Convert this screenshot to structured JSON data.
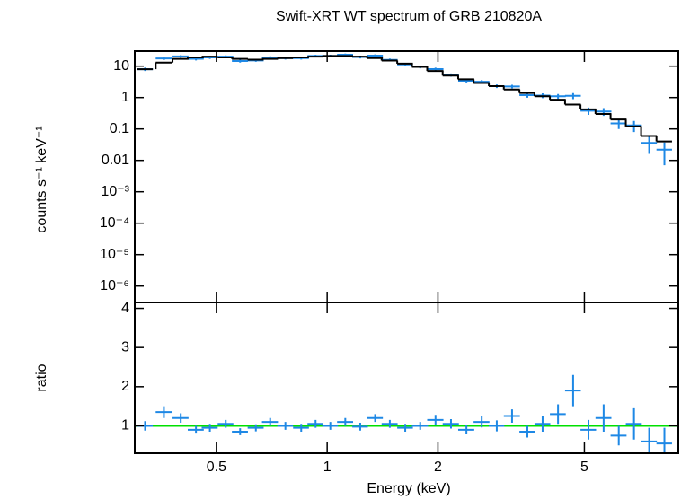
{
  "chart_data": [
    {
      "type": "scatter",
      "title": "Swift-XRT WT spectrum of GRB 210820A",
      "y_label": "counts s⁻¹ keV⁻¹",
      "log_x": true,
      "log_y": true,
      "xlim": [
        0.3,
        9
      ],
      "xticks": [
        0.5,
        1,
        2,
        5
      ],
      "ylim": [
        3e-07,
        30
      ],
      "yticks": [
        10,
        1,
        0.1,
        0.01,
        {
          "value": 0.001,
          "label": "10⁻³"
        },
        {
          "value": 0.0001,
          "label": "10⁻⁴"
        },
        {
          "value": 1e-05,
          "label": "10⁻⁵"
        },
        {
          "value": 1e-06,
          "label": "10⁻⁶"
        }
      ],
      "x": [
        0.32,
        0.36,
        0.4,
        0.44,
        0.48,
        0.53,
        0.58,
        0.64,
        0.7,
        0.77,
        0.85,
        0.93,
        1.02,
        1.12,
        1.23,
        1.35,
        1.48,
        1.63,
        1.79,
        1.97,
        2.17,
        2.39,
        2.63,
        2.89,
        3.18,
        3.5,
        3.85,
        4.24,
        4.66,
        5.13,
        5.64,
        6.2,
        6.82,
        7.5,
        8.25
      ],
      "xerr": [
        0.016,
        0.018,
        0.02,
        0.022,
        0.024,
        0.026,
        0.029,
        0.032,
        0.035,
        0.038,
        0.042,
        0.046,
        0.05,
        0.056,
        0.06,
        0.067,
        0.074,
        0.08,
        0.09,
        0.1,
        0.11,
        0.12,
        0.13,
        0.14,
        0.16,
        0.17,
        0.19,
        0.21,
        0.23,
        0.25,
        0.28,
        0.31,
        0.34,
        0.37,
        0.4
      ],
      "series": [
        {
          "style": "points",
          "color": "#1e88e5",
          "values": [
            8,
            17.6,
            20.4,
            17.1,
            19,
            20,
            14.5,
            15.2,
            18.7,
            18,
            18,
            21,
            21,
            23.1,
            19.6,
            21.6,
            15.8,
            11.4,
            9.5,
            8.05,
            5.25,
            3.42,
            3.19,
            2.3,
            2.25,
            1.19,
            1.16,
            1.1,
            1.14,
            0.38,
            0.36,
            0.15,
            0.13,
            0.036,
            0.022
          ],
          "errors": [
            1,
            2,
            2,
            2,
            2,
            2,
            1.5,
            1.5,
            1.8,
            1.8,
            1.8,
            2,
            2,
            2,
            2,
            2,
            1.6,
            1.2,
            1,
            0.9,
            0.6,
            0.4,
            0.4,
            0.3,
            0.3,
            0.2,
            0.2,
            0.2,
            0.25,
            0.1,
            0.1,
            0.05,
            0.05,
            0.02,
            0.015
          ]
        },
        {
          "style": "step",
          "color": "#000000",
          "values": [
            8,
            13,
            17,
            19,
            20,
            19,
            17,
            16,
            17,
            18,
            19,
            20,
            21,
            21,
            20,
            18,
            15,
            12,
            9.5,
            7,
            5,
            3.8,
            2.9,
            2.3,
            1.8,
            1.4,
            1.1,
            0.85,
            0.6,
            0.42,
            0.3,
            0.2,
            0.12,
            0.06,
            0.04
          ]
        }
      ]
    },
    {
      "type": "scatter",
      "y_label": "ratio",
      "x_label": "Energy (keV)",
      "log_x": true,
      "log_y": false,
      "xlim": [
        0.3,
        9
      ],
      "xticks": [
        0.5,
        1,
        2,
        5
      ],
      "ylim": [
        0.3,
        4.15
      ],
      "yticks": [
        1,
        2,
        3,
        4
      ],
      "reference_line": 1,
      "reference_color": "#00e000",
      "x": [
        0.32,
        0.36,
        0.4,
        0.44,
        0.48,
        0.53,
        0.58,
        0.64,
        0.7,
        0.77,
        0.85,
        0.93,
        1.02,
        1.12,
        1.23,
        1.35,
        1.48,
        1.63,
        1.79,
        1.97,
        2.17,
        2.39,
        2.63,
        2.89,
        3.18,
        3.5,
        3.85,
        4.24,
        4.66,
        5.13,
        5.64,
        6.2,
        6.82,
        7.5,
        8.25
      ],
      "xerr": [
        0.016,
        0.018,
        0.02,
        0.022,
        0.024,
        0.026,
        0.029,
        0.032,
        0.035,
        0.038,
        0.042,
        0.046,
        0.05,
        0.056,
        0.06,
        0.067,
        0.074,
        0.08,
        0.09,
        0.1,
        0.11,
        0.12,
        0.13,
        0.14,
        0.16,
        0.17,
        0.19,
        0.21,
        0.23,
        0.25,
        0.28,
        0.31,
        0.34,
        0.37,
        0.4
      ],
      "series": [
        {
          "style": "points",
          "color": "#1e88e5",
          "values": [
            1.0,
            1.35,
            1.2,
            0.9,
            0.95,
            1.05,
            0.85,
            0.95,
            1.1,
            1.0,
            0.95,
            1.05,
            1.0,
            1.1,
            0.98,
            1.2,
            1.05,
            0.95,
            1.0,
            1.15,
            1.05,
            0.9,
            1.1,
            1.0,
            1.25,
            0.85,
            1.05,
            1.3,
            1.9,
            0.9,
            1.2,
            0.75,
            1.05,
            0.6,
            0.55
          ],
          "errors": [
            0.12,
            0.15,
            0.12,
            0.1,
            0.1,
            0.1,
            0.09,
            0.09,
            0.1,
            0.1,
            0.1,
            0.1,
            0.1,
            0.1,
            0.1,
            0.1,
            0.1,
            0.1,
            0.1,
            0.13,
            0.12,
            0.12,
            0.14,
            0.14,
            0.17,
            0.15,
            0.2,
            0.25,
            0.4,
            0.25,
            0.35,
            0.25,
            0.4,
            0.35,
            0.4
          ]
        }
      ]
    }
  ]
}
